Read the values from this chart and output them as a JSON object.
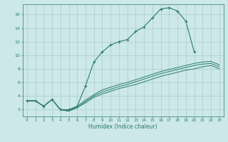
{
  "xlabel": "Humidex (Indice chaleur)",
  "bg_color": "#cce8e8",
  "line_color": "#2a7a72",
  "grid_color": "#aacccc",
  "xlim": [
    -0.5,
    23.5
  ],
  "ylim": [
    1.0,
    17.5
  ],
  "xticks": [
    0,
    1,
    2,
    3,
    4,
    5,
    6,
    7,
    8,
    9,
    10,
    11,
    12,
    13,
    14,
    15,
    16,
    17,
    18,
    19,
    20,
    21,
    22,
    23
  ],
  "yticks": [
    2,
    4,
    6,
    8,
    10,
    12,
    14,
    16
  ],
  "curves": [
    {
      "x": [
        0,
        1,
        2,
        3,
        4,
        5,
        6,
        7,
        8,
        9,
        10,
        11,
        12,
        13,
        14,
        15,
        16,
        17,
        18,
        19,
        20
      ],
      "y": [
        3.3,
        3.3,
        2.5,
        3.5,
        2.0,
        2.0,
        2.5,
        5.5,
        9.0,
        10.5,
        11.5,
        12.0,
        12.3,
        13.5,
        14.2,
        15.5,
        16.8,
        17.0,
        16.5,
        15.0,
        10.5
      ],
      "marker": true
    },
    {
      "x": [
        0,
        1,
        2,
        3,
        4,
        5,
        6,
        7,
        8,
        9,
        10,
        11,
        12,
        13,
        14,
        15,
        16,
        17,
        18,
        19,
        20,
        21,
        22,
        23
      ],
      "y": [
        3.3,
        3.3,
        2.5,
        3.5,
        2.0,
        1.8,
        2.3,
        3.0,
        3.8,
        4.3,
        4.7,
        5.1,
        5.4,
        5.7,
        6.1,
        6.5,
        6.9,
        7.2,
        7.5,
        7.8,
        8.0,
        8.3,
        8.5,
        8.0
      ],
      "marker": false
    },
    {
      "x": [
        0,
        1,
        2,
        3,
        4,
        5,
        6,
        7,
        8,
        9,
        10,
        11,
        12,
        13,
        14,
        15,
        16,
        17,
        18,
        19,
        20,
        21,
        22,
        23
      ],
      "y": [
        3.3,
        3.3,
        2.5,
        3.5,
        2.0,
        1.8,
        2.3,
        3.2,
        4.0,
        4.6,
        5.0,
        5.4,
        5.7,
        6.1,
        6.5,
        6.9,
        7.3,
        7.6,
        7.9,
        8.2,
        8.5,
        8.7,
        8.8,
        8.3
      ],
      "marker": false
    },
    {
      "x": [
        0,
        1,
        2,
        3,
        4,
        5,
        6,
        7,
        8,
        9,
        10,
        11,
        12,
        13,
        14,
        15,
        16,
        17,
        18,
        19,
        20,
        21,
        22,
        23
      ],
      "y": [
        3.3,
        3.3,
        2.5,
        3.5,
        2.0,
        1.8,
        2.5,
        3.4,
        4.2,
        4.9,
        5.3,
        5.7,
        6.0,
        6.4,
        6.8,
        7.2,
        7.6,
        7.9,
        8.2,
        8.5,
        8.8,
        9.0,
        9.1,
        8.6
      ],
      "marker": false
    }
  ]
}
